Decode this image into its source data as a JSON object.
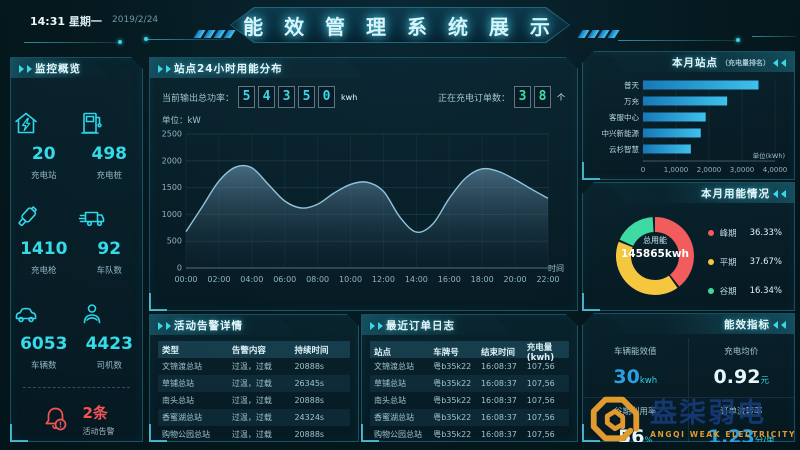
{
  "header": {
    "time": "14:31",
    "weekday": "星期一",
    "date": "2019/2/24",
    "title": "能 效 管 理 系 统 展 示"
  },
  "sidebar": {
    "title": "监控概览",
    "stats": [
      {
        "icon": "charging-station-icon",
        "value": "20",
        "label": "充电站"
      },
      {
        "icon": "charging-pile-icon",
        "value": "498",
        "label": "充电桩"
      },
      {
        "icon": "charging-gun-icon",
        "value": "1410",
        "label": "充电枪"
      },
      {
        "icon": "fleet-truck-icon",
        "value": "92",
        "label": "车队数"
      },
      {
        "icon": "vehicle-icon",
        "value": "6053",
        "label": "车辆数"
      },
      {
        "icon": "driver-icon",
        "value": "4423",
        "label": "司机数"
      }
    ],
    "alarm": {
      "count": "2条",
      "label": "活动告警",
      "color": "#f25454"
    }
  },
  "energy24h": {
    "title": "站点24小时用能分布",
    "output_label": "当前输出总功率：",
    "output_digits": [
      "5",
      "4",
      "3",
      "5",
      "0"
    ],
    "output_unit": "kwh",
    "orders_label": "正在充电订单数：",
    "orders_digits": [
      "3",
      "8"
    ],
    "orders_unit": "个",
    "y_unit": "单位：kW"
  },
  "alarms": {
    "title": "活动告警详情",
    "headers": [
      "类型",
      "告警内容",
      "持续时间"
    ],
    "rows": [
      [
        "文锦渡总站",
        "过温，过载",
        "20888s"
      ],
      [
        "草铺总站",
        "过温，过载",
        "26345s"
      ],
      [
        "南头总站",
        "过温，过载",
        "20888s"
      ],
      [
        "香蜜湖总站",
        "过温，过载",
        "24324s"
      ],
      [
        "购物公园总站",
        "过温，过载",
        "20888s"
      ]
    ]
  },
  "orders": {
    "title": "最近订单日志",
    "headers": [
      "站点",
      "车牌号",
      "结束时间",
      "充电量(kwh)"
    ],
    "rows": [
      [
        "文锦渡总站",
        "粤b35k22",
        "16:08:37",
        "107,56"
      ],
      [
        "草铺总站",
        "粤b35k22",
        "16:08:37",
        "107,56"
      ],
      [
        "南头总站",
        "粤b35k22",
        "16:08:37",
        "107,56"
      ],
      [
        "香蜜湖总站",
        "粤b35k22",
        "16:08:37",
        "107,56"
      ],
      [
        "购物公园总站",
        "粤b35k22",
        "16:08:37",
        "107,56"
      ]
    ]
  },
  "metrics": {
    "title": "能效指标",
    "items": [
      {
        "label": "车辆能效值",
        "value": "30",
        "unit": "kwh",
        "color": "#2b9fe0"
      },
      {
        "label": "充电均价",
        "value": "0.92",
        "unit": "元",
        "color": "#e6f7fb"
      },
      {
        "label": "谷期利用率",
        "value": "56",
        "unit": "%",
        "color": "#e6f7fb"
      },
      {
        "label": "订单流转率",
        "value": "1.23",
        "unit": "分/单",
        "color": "#2b9fe0"
      }
    ]
  },
  "watermark": {
    "cn": "盎柒弱电",
    "en": "ANGQI WEAK ELECTRICITY"
  },
  "colors": {
    "accent": "#35dbe8",
    "bar": "#2aa6dd",
    "alarm": "#f25454",
    "peak": "#f25c5c",
    "flat": "#f5c73e",
    "valley": "#3fd9a4"
  },
  "chart_data": [
    {
      "id": "energy24h",
      "type": "area",
      "title": "站点24小时用能分布",
      "x_hours": [
        0,
        1,
        2,
        3,
        4,
        5,
        6,
        7,
        8,
        9,
        10,
        11,
        12,
        13,
        14,
        15,
        16,
        17,
        18,
        19,
        20,
        21,
        22
      ],
      "values": [
        680,
        1150,
        1620,
        1880,
        1870,
        1560,
        1250,
        1120,
        1190,
        1400,
        1560,
        1600,
        1430,
        950,
        670,
        820,
        1300,
        1680,
        1850,
        1800,
        1650,
        1470,
        1300
      ],
      "x_tick_labels": [
        "00:00",
        "02:00",
        "04:00",
        "06:00",
        "08:00",
        "10:00",
        "12:00",
        "14:00",
        "16:00",
        "18:00",
        "20:00",
        "22:00"
      ],
      "y_ticks": [
        0,
        500,
        1000,
        1500,
        2000,
        2500
      ],
      "ylim": [
        0,
        2500
      ],
      "ylabel": "单位：kW",
      "xlabel": "时间",
      "grid": true,
      "legend": "none"
    },
    {
      "id": "monthlyStations",
      "type": "bar",
      "title": "本月站点",
      "subtitle": "（充电量排名）",
      "categories": [
        "普天",
        "万充",
        "客服中心",
        "中兴新能源",
        "云杉智慧"
      ],
      "values": [
        35000,
        25500,
        19000,
        17500,
        14500
      ],
      "x_tick_labels": [
        "0",
        "1,0000",
        "2,0000",
        "3,0000",
        "4,0000"
      ],
      "xlim": [
        0,
        40000
      ],
      "unit": "单位(kWh)",
      "orientation": "horizontal"
    },
    {
      "id": "monthlyEnergy",
      "type": "pie",
      "title": "本月用能情况",
      "center_label": "总用能",
      "center_value": "145865kwh",
      "slices": [
        {
          "name": "峰期",
          "pct": "36.33%",
          "value": 36.33,
          "color": "#f25c5c"
        },
        {
          "name": "平期",
          "pct": "37.67%",
          "value": 37.67,
          "color": "#f5c73e"
        },
        {
          "name": "谷期",
          "pct": "16.34%",
          "value": 16.34,
          "color": "#3fd9a4"
        }
      ],
      "legend": "right"
    }
  ]
}
